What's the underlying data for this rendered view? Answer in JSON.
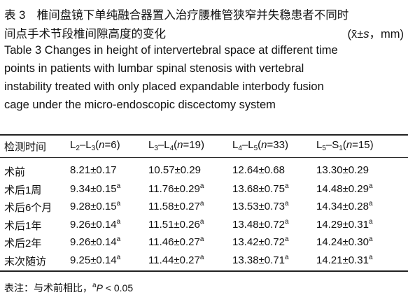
{
  "caption": {
    "zh_lines": [
      "表 3　椎间盘镜下单纯融合器置入治疗腰椎管狭窄并失稳患者不同时",
      "间点手术节段椎间隙高度的变化"
    ],
    "unit_parts": [
      "(x̄±",
      "s",
      "，mm)"
    ],
    "en_lines": [
      "Table 3    Changes in height of intervertebral space at different time",
      "points in patients with lumbar spinal stenosis with vertebral",
      "instability treated with only placed expandable interbody fusion",
      "cage under the micro-endoscopic discectomy system"
    ]
  },
  "table": {
    "header": [
      {
        "parts": [
          "检测时间"
        ]
      },
      {
        "parts": [
          "L",
          "2",
          "–L",
          "3",
          "(",
          "n",
          "=6)"
        ]
      },
      {
        "parts": [
          "L",
          "3",
          "–L",
          "4",
          "(",
          "n",
          "=19)"
        ]
      },
      {
        "parts": [
          "L",
          "4",
          "–L",
          "5",
          "(",
          "n",
          "=33)"
        ]
      },
      {
        "parts": [
          "L",
          "5",
          "–S",
          "1",
          "(",
          "n",
          "=15)"
        ]
      }
    ],
    "rows": [
      [
        "术前",
        {
          "text": "8.21±0.17"
        },
        {
          "text": "10.57±0.29"
        },
        {
          "text": "12.64±0.68"
        },
        {
          "text": "13.30±0.29"
        }
      ],
      [
        "术后1周",
        {
          "text": "9.34±0.15",
          "sup": "a"
        },
        {
          "text": "11.76±0.29",
          "sup": "a"
        },
        {
          "text": "13.68±0.75",
          "sup": "a"
        },
        {
          "text": "14.48±0.29",
          "sup": "a"
        }
      ],
      [
        "术后6个月",
        {
          "text": "9.28±0.15",
          "sup": "a"
        },
        {
          "text": "11.58±0.27",
          "sup": "a"
        },
        {
          "text": "13.53±0.73",
          "sup": "a"
        },
        {
          "text": "14.34±0.28",
          "sup": "a"
        }
      ],
      [
        "术后1年",
        {
          "text": "9.26±0.14",
          "sup": "a"
        },
        {
          "text": "11.51±0.26",
          "sup": "a"
        },
        {
          "text": "13.48±0.72",
          "sup": "a"
        },
        {
          "text": "14.29±0.31",
          "sup": "a"
        }
      ],
      [
        "术后2年",
        {
          "text": "9.26±0.14",
          "sup": "a"
        },
        {
          "text": "11.46±0.27",
          "sup": "a"
        },
        {
          "text": "13.42±0.72",
          "sup": "a"
        },
        {
          "text": "14.24±0.30",
          "sup": "a"
        }
      ],
      [
        "末次随访",
        {
          "text": "9.25±0.14",
          "sup": "a"
        },
        {
          "text": "11.44±0.27",
          "sup": "a"
        },
        {
          "text": "13.38±0.71",
          "sup": "a"
        },
        {
          "text": "14.21±0.31",
          "sup": "a"
        }
      ]
    ]
  },
  "footnote": {
    "parts": [
      "表注：与术前相比，",
      "a",
      "P",
      " < 0.05"
    ]
  }
}
